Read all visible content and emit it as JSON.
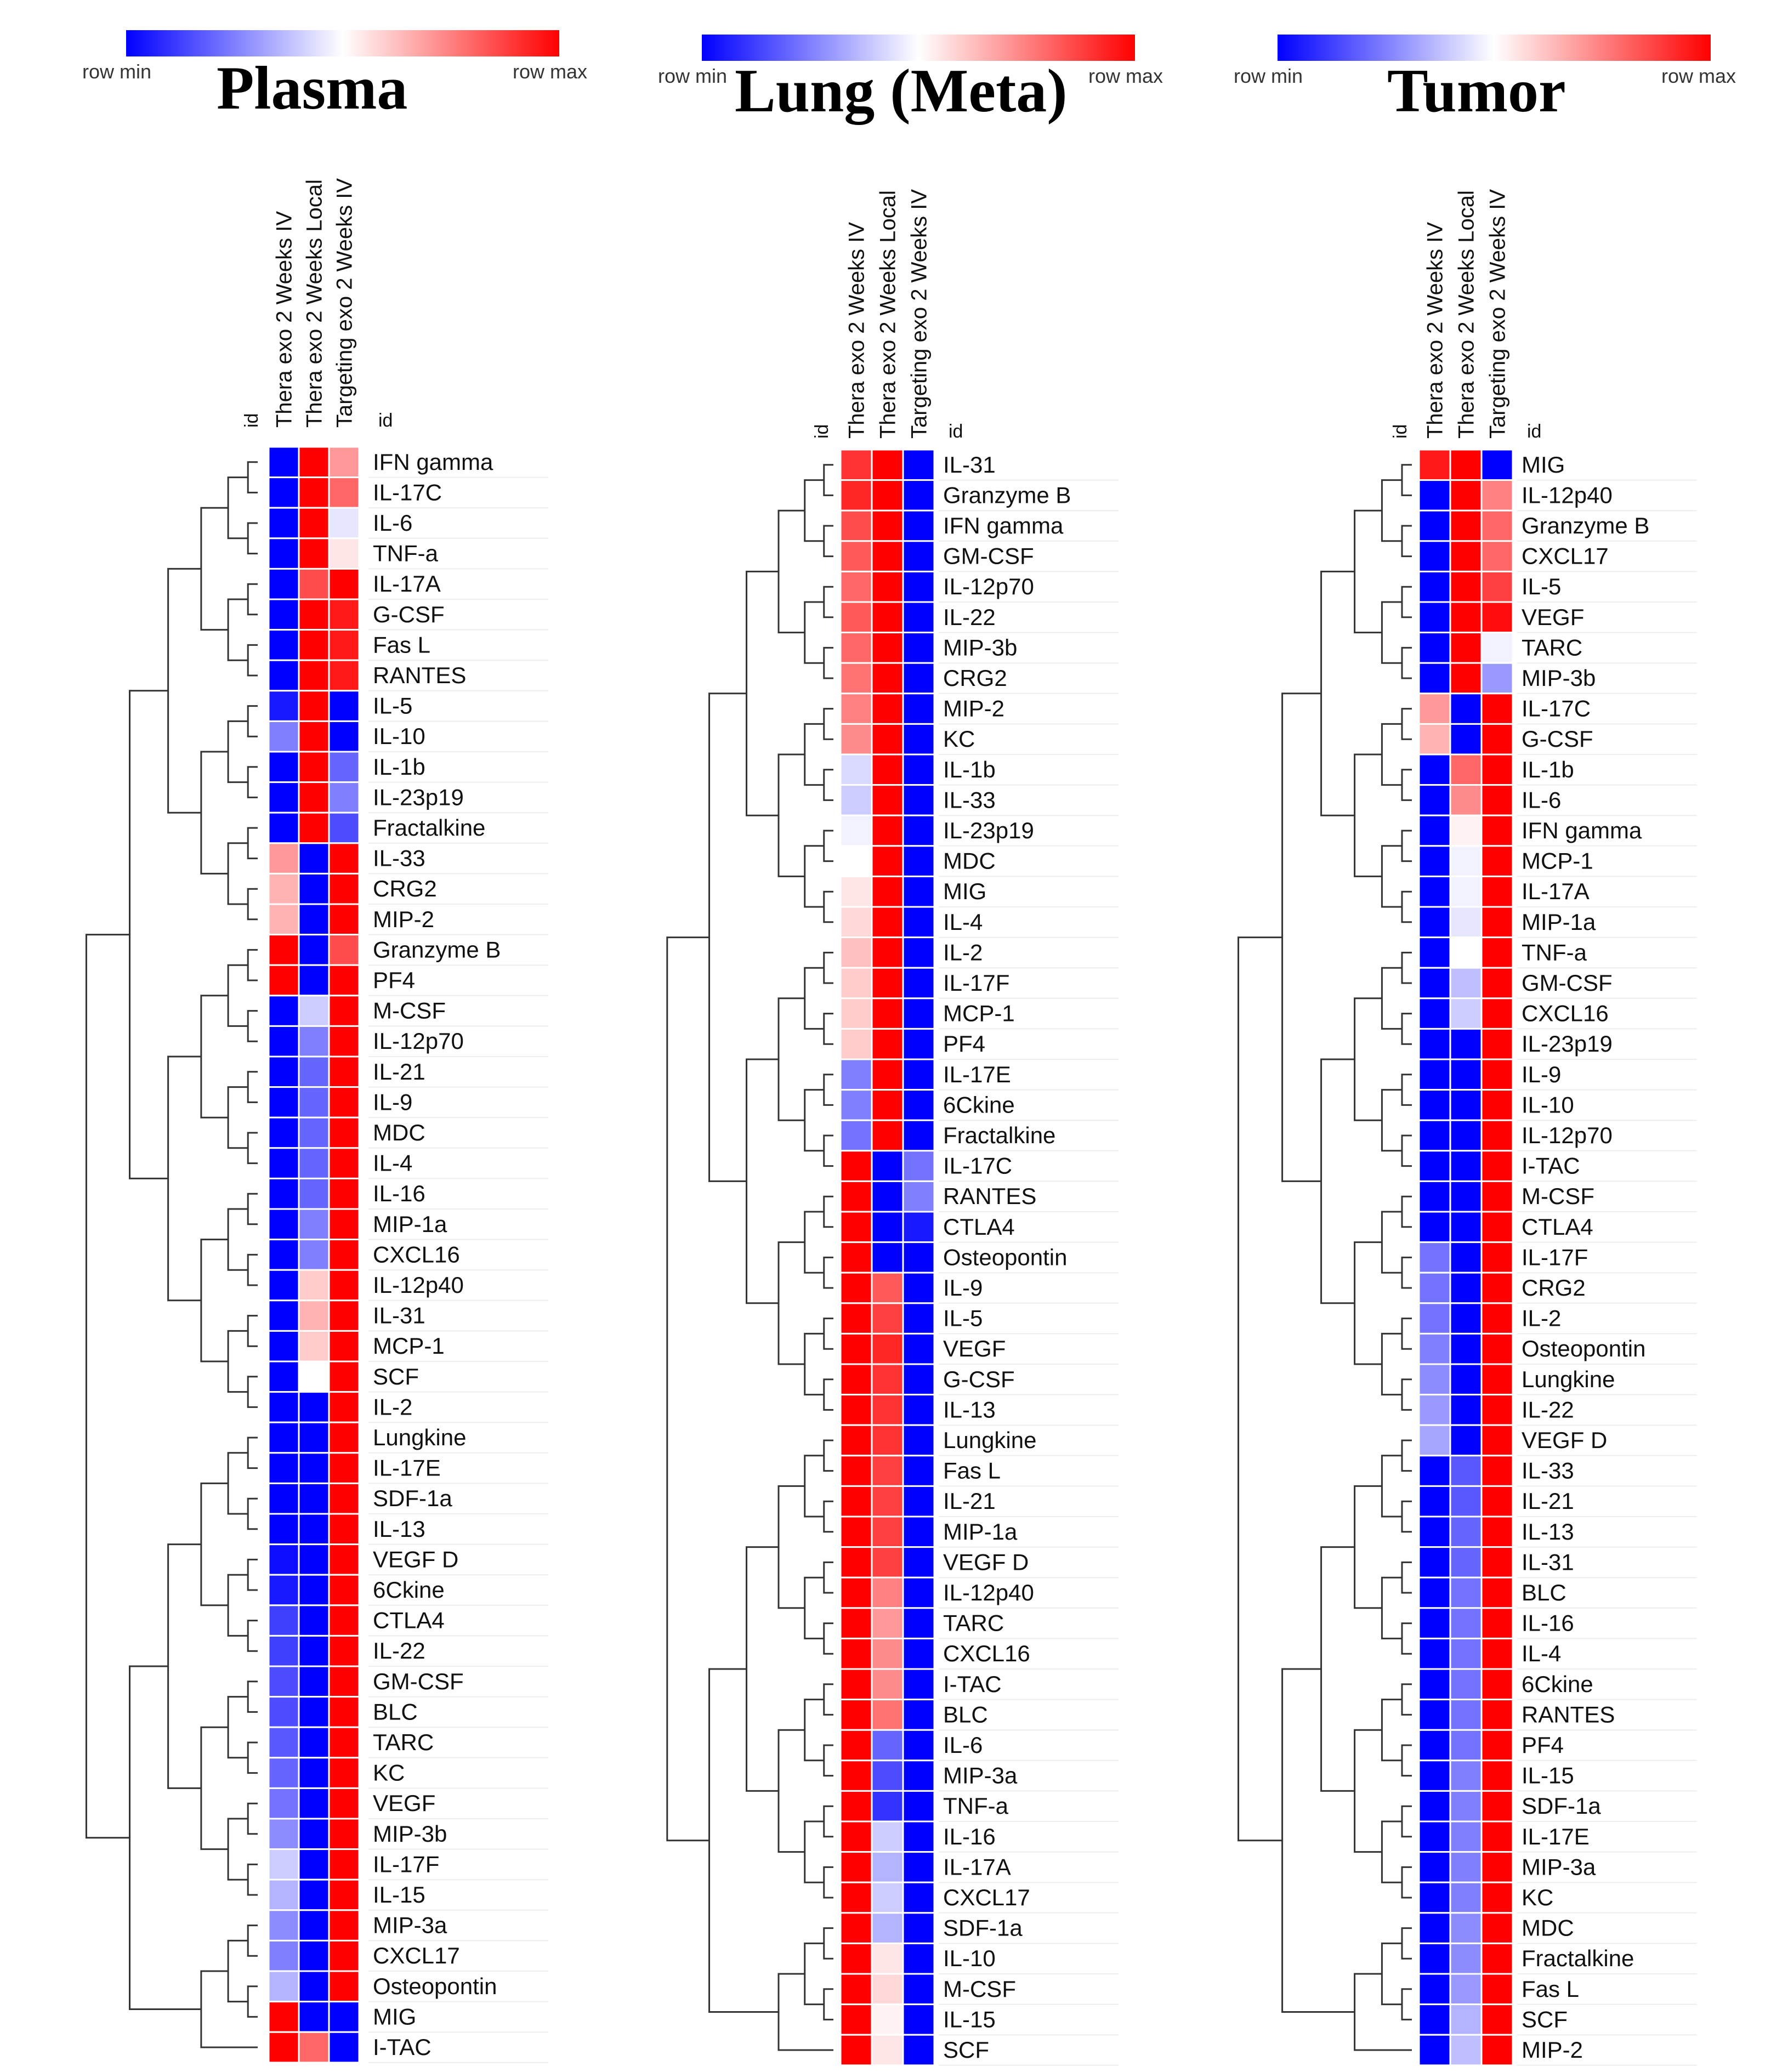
{
  "chart_data": [
    {
      "type": "heatmap",
      "title": "Plasma",
      "legend": {
        "min_label": "row  min",
        "max_label": "row  max",
        "colors": [
          "#0000ff",
          "#ffffff",
          "#ff0000"
        ]
      },
      "id_label": "id",
      "columns": [
        "Thera exo 2 Weeks IV",
        "Thera exo 2 Weeks Local",
        "Targeting exo 2 Weeks IV"
      ],
      "rows": [
        "IFN gamma",
        "IL-17C",
        "IL-6",
        "TNF-a",
        "IL-17A",
        "G-CSF",
        "Fas L",
        "RANTES",
        "IL-5",
        "IL-10",
        "IL-1b",
        "IL-23p19",
        "Fractalkine",
        "IL-33",
        "CRG2",
        "MIP-2",
        "Granzyme B",
        "PF4",
        "M-CSF",
        "IL-12p70",
        "IL-21",
        "IL-9",
        "MDC",
        "IL-4",
        "IL-16",
        "MIP-1a",
        "CXCL16",
        "IL-12p40",
        "IL-31",
        "MCP-1",
        "SCF",
        "IL-2",
        "Lungkine",
        "IL-17E",
        "SDF-1a",
        "IL-13",
        "VEGF D",
        "6Ckine",
        "CTLA4",
        "IL-22",
        "GM-CSF",
        "BLC",
        "TARC",
        "KC",
        "VEGF",
        "MIP-3b",
        "IL-17F",
        "IL-15",
        "MIP-3a",
        "CXCL17",
        "Osteopontin",
        "MIG",
        "I-TAC"
      ],
      "values": [
        [
          -1,
          1,
          0.4
        ],
        [
          -1,
          1,
          0.6
        ],
        [
          -1,
          1,
          -0.1
        ],
        [
          -1,
          1,
          0.1
        ],
        [
          -1,
          0.7,
          1
        ],
        [
          -1,
          1,
          0.9
        ],
        [
          -1,
          1,
          0.9
        ],
        [
          -1,
          1,
          0.9
        ],
        [
          -0.9,
          1,
          -1
        ],
        [
          -0.5,
          1,
          -1
        ],
        [
          -1,
          1,
          -0.6
        ],
        [
          -1,
          1,
          -0.5
        ],
        [
          -1,
          1,
          -0.7
        ],
        [
          0.4,
          -1,
          1
        ],
        [
          0.3,
          -1,
          1
        ],
        [
          0.3,
          -1,
          1
        ],
        [
          1,
          -1,
          0.7
        ],
        [
          1,
          -1,
          1
        ],
        [
          -1,
          -0.2,
          1
        ],
        [
          -1,
          -0.5,
          1
        ],
        [
          -1,
          -0.6,
          1
        ],
        [
          -1,
          -0.6,
          1
        ],
        [
          -1,
          -0.6,
          1
        ],
        [
          -1,
          -0.6,
          1
        ],
        [
          -1,
          -0.6,
          1
        ],
        [
          -1,
          -0.5,
          1
        ],
        [
          -1,
          -0.5,
          1
        ],
        [
          -1,
          0.2,
          1
        ],
        [
          -1,
          0.3,
          1
        ],
        [
          -1,
          0.2,
          1
        ],
        [
          -1,
          0,
          1
        ],
        [
          -1,
          -1,
          1
        ],
        [
          -1,
          -1,
          1
        ],
        [
          -1,
          -1,
          1
        ],
        [
          -1,
          -1,
          1
        ],
        [
          -1,
          -1,
          1
        ],
        [
          -0.95,
          -1,
          1
        ],
        [
          -0.9,
          -1,
          1
        ],
        [
          -0.75,
          -1,
          1
        ],
        [
          -0.75,
          -1,
          1
        ],
        [
          -0.7,
          -1,
          1
        ],
        [
          -0.7,
          -1,
          1
        ],
        [
          -0.65,
          -1,
          1
        ],
        [
          -0.6,
          -1,
          1
        ],
        [
          -0.55,
          -1,
          1
        ],
        [
          -0.45,
          -1,
          1
        ],
        [
          -0.2,
          -1,
          1
        ],
        [
          -0.3,
          -1,
          1
        ],
        [
          -0.45,
          -1,
          1
        ],
        [
          -0.5,
          -1,
          1
        ],
        [
          -0.3,
          -1,
          1
        ],
        [
          1,
          -1,
          -1
        ],
        [
          1,
          0.6,
          -1
        ]
      ]
    },
    {
      "type": "heatmap",
      "title": "Lung (Meta)",
      "legend": {
        "min_label": "row  min",
        "max_label": "row  max",
        "colors": [
          "#0000ff",
          "#ffffff",
          "#ff0000"
        ]
      },
      "id_label": "id",
      "columns": [
        "Thera exo 2 Weeks IV",
        "Thera exo 2 Weeks Local",
        "Targeting exo 2 Weeks IV"
      ],
      "rows": [
        "IL-31",
        "Granzyme B",
        "IFN gamma",
        "GM-CSF",
        "IL-12p70",
        "IL-22",
        "MIP-3b",
        "CRG2",
        "MIP-2",
        "KC",
        "IL-1b",
        "IL-33",
        "IL-23p19",
        "MDC",
        "MIG",
        "IL-4",
        "IL-2",
        "IL-17F",
        "MCP-1",
        "PF4",
        "IL-17E",
        "6Ckine",
        "Fractalkine",
        "IL-17C",
        "RANTES",
        "CTLA4",
        "Osteopontin",
        "IL-9",
        "IL-5",
        "VEGF",
        "G-CSF",
        "IL-13",
        "Lungkine",
        "Fas L",
        "IL-21",
        "MIP-1a",
        "VEGF D",
        "IL-12p40",
        "TARC",
        "CXCL16",
        "I-TAC",
        "BLC",
        "IL-6",
        "MIP-3a",
        "TNF-a",
        "IL-16",
        "IL-17A",
        "CXCL17",
        "SDF-1a",
        "IL-10",
        "M-CSF",
        "IL-15",
        "SCF"
      ],
      "values": [
        [
          0.8,
          1,
          -1
        ],
        [
          0.85,
          1,
          -1
        ],
        [
          0.7,
          1,
          -1
        ],
        [
          0.65,
          1,
          -1
        ],
        [
          0.6,
          1,
          -1
        ],
        [
          0.65,
          1,
          -1
        ],
        [
          0.6,
          1,
          -1
        ],
        [
          0.55,
          1,
          -1
        ],
        [
          0.5,
          1,
          -1
        ],
        [
          0.45,
          1,
          -1
        ],
        [
          -0.15,
          1,
          -1
        ],
        [
          -0.2,
          1,
          -1
        ],
        [
          -0.05,
          1,
          -1
        ],
        [
          0,
          1,
          -1
        ],
        [
          0.1,
          1,
          -1
        ],
        [
          0.15,
          1,
          -1
        ],
        [
          0.25,
          1,
          -1
        ],
        [
          0.2,
          1,
          -1
        ],
        [
          0.2,
          1,
          -1
        ],
        [
          0.2,
          1,
          -1
        ],
        [
          -0.5,
          1,
          -1
        ],
        [
          -0.5,
          1,
          -1
        ],
        [
          -0.55,
          1,
          -1
        ],
        [
          1,
          -1,
          -0.55
        ],
        [
          1,
          -1,
          -0.5
        ],
        [
          1,
          -1,
          -0.9
        ],
        [
          1,
          -1,
          -1
        ],
        [
          1,
          0.65,
          -1
        ],
        [
          1,
          0.75,
          -1
        ],
        [
          1,
          0.85,
          -1
        ],
        [
          1,
          0.8,
          -1
        ],
        [
          1,
          0.8,
          -1
        ],
        [
          1,
          0.8,
          -1
        ],
        [
          1,
          0.75,
          -1
        ],
        [
          1,
          0.75,
          -1
        ],
        [
          1,
          0.75,
          -1
        ],
        [
          1,
          0.75,
          -1
        ],
        [
          1,
          0.5,
          -1
        ],
        [
          1,
          0.4,
          -1
        ],
        [
          1,
          0.45,
          -1
        ],
        [
          1,
          0.45,
          -1
        ],
        [
          1,
          0.55,
          -1
        ],
        [
          1,
          -0.6,
          -1
        ],
        [
          1,
          -0.7,
          -1
        ],
        [
          1,
          -0.8,
          -1
        ],
        [
          1,
          -0.2,
          -1
        ],
        [
          1,
          -0.3,
          -1
        ],
        [
          1,
          -0.2,
          -1
        ],
        [
          1,
          -0.3,
          -1
        ],
        [
          1,
          0.1,
          -1
        ],
        [
          1,
          0.15,
          -1
        ],
        [
          1,
          0.05,
          -1
        ],
        [
          1,
          0.1,
          -1
        ]
      ]
    },
    {
      "type": "heatmap",
      "title": "Tumor",
      "legend": {
        "min_label": "row  min",
        "max_label": "row  max",
        "colors": [
          "#0000ff",
          "#ffffff",
          "#ff0000"
        ]
      },
      "id_label": "id",
      "columns": [
        "Thera exo 2 Weeks IV",
        "Thera exo 2 Weeks Local",
        "Targeting exo 2 Weeks IV"
      ],
      "rows": [
        "MIG",
        "IL-12p40",
        "Granzyme B",
        "CXCL17",
        "IL-5",
        "VEGF",
        "TARC",
        "MIP-3b",
        "IL-17C",
        "G-CSF",
        "IL-1b",
        "IL-6",
        "IFN gamma",
        "MCP-1",
        "IL-17A",
        "MIP-1a",
        "TNF-a",
        "GM-CSF",
        "CXCL16",
        "IL-23p19",
        "IL-9",
        "IL-10",
        "IL-12p70",
        "I-TAC",
        "M-CSF",
        "CTLA4",
        "IL-17F",
        "CRG2",
        "IL-2",
        "Osteopontin",
        "Lungkine",
        "IL-22",
        "VEGF D",
        "IL-33",
        "IL-21",
        "IL-13",
        "IL-31",
        "BLC",
        "IL-16",
        "IL-4",
        "6Ckine",
        "RANTES",
        "PF4",
        "IL-15",
        "SDF-1a",
        "IL-17E",
        "MIP-3a",
        "KC",
        "MDC",
        "Fractalkine",
        "Fas L",
        "SCF",
        "MIP-2"
      ],
      "values": [
        [
          0.9,
          1,
          -1
        ],
        [
          -1,
          1,
          0.5
        ],
        [
          -1,
          1,
          0.6
        ],
        [
          -1,
          1,
          0.6
        ],
        [
          -1,
          1,
          0.75
        ],
        [
          -1,
          1,
          0.95
        ],
        [
          -1,
          1,
          -0.05
        ],
        [
          -1,
          1,
          -0.4
        ],
        [
          0.4,
          -1,
          1
        ],
        [
          0.3,
          -1,
          1
        ],
        [
          -1,
          0.6,
          1
        ],
        [
          -1,
          0.45,
          1
        ],
        [
          -1,
          0.05,
          1
        ],
        [
          -1,
          -0.05,
          1
        ],
        [
          -1,
          -0.05,
          1
        ],
        [
          -1,
          -0.1,
          1
        ],
        [
          -1,
          0,
          1
        ],
        [
          -1,
          -0.25,
          1
        ],
        [
          -1,
          -0.2,
          1
        ],
        [
          -1,
          -1,
          1
        ],
        [
          -1,
          -1,
          1
        ],
        [
          -1,
          -1,
          1
        ],
        [
          -1,
          -1,
          1
        ],
        [
          -1,
          -1,
          1
        ],
        [
          -1,
          -1,
          1
        ],
        [
          -1,
          -1,
          1
        ],
        [
          -0.55,
          -1,
          1
        ],
        [
          -0.55,
          -1,
          1
        ],
        [
          -0.55,
          -1,
          1
        ],
        [
          -0.5,
          -1,
          1
        ],
        [
          -0.45,
          -1,
          1
        ],
        [
          -0.4,
          -1,
          1
        ],
        [
          -0.35,
          -1,
          1
        ],
        [
          -1,
          -0.65,
          1
        ],
        [
          -1,
          -0.65,
          1
        ],
        [
          -1,
          -0.6,
          1
        ],
        [
          -1,
          -0.6,
          1
        ],
        [
          -1,
          -0.55,
          1
        ],
        [
          -1,
          -0.55,
          1
        ],
        [
          -1,
          -0.55,
          1
        ],
        [
          -1,
          -0.55,
          1
        ],
        [
          -1,
          -0.55,
          1
        ],
        [
          -1,
          -0.55,
          1
        ],
        [
          -1,
          -0.5,
          1
        ],
        [
          -1,
          -0.5,
          1
        ],
        [
          -1,
          -0.5,
          1
        ],
        [
          -1,
          -0.5,
          1
        ],
        [
          -1,
          -0.5,
          1
        ],
        [
          -1,
          -0.45,
          1
        ],
        [
          -1,
          -0.45,
          1
        ],
        [
          -1,
          -0.4,
          1
        ],
        [
          -1,
          -0.3,
          1
        ],
        [
          -1,
          -0.25,
          1
        ]
      ]
    }
  ]
}
